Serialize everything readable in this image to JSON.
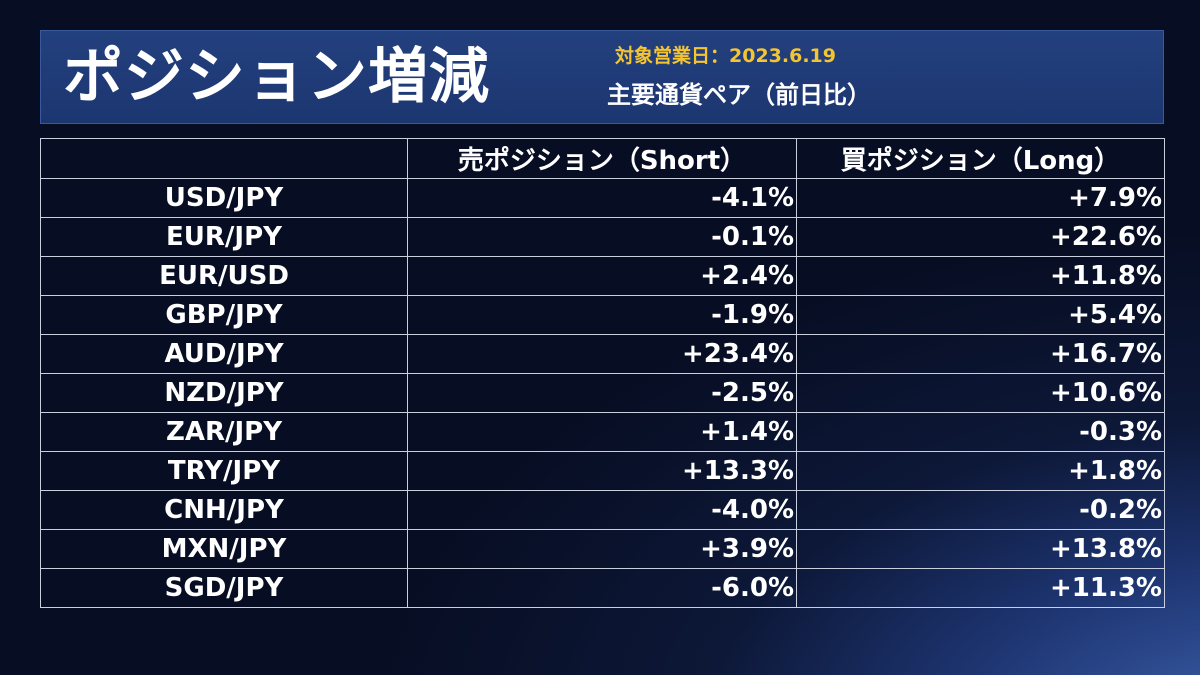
{
  "header": {
    "title": "ポジション増減",
    "date": "対象営業日：2023.6.19",
    "subtitle": "主要通貨ペア（前日比）"
  },
  "table": {
    "columns": [
      "",
      "売ポジション（Short）",
      "買ポジション（Long）"
    ],
    "rows": [
      {
        "pair": "USD/JPY",
        "short": "-4.1%",
        "long": "+7.9%"
      },
      {
        "pair": "EUR/JPY",
        "short": "-0.1%",
        "long": "+22.6%"
      },
      {
        "pair": "EUR/USD",
        "short": "+2.4%",
        "long": "+11.8%"
      },
      {
        "pair": "GBP/JPY",
        "short": "-1.9%",
        "long": "+5.4%"
      },
      {
        "pair": "AUD/JPY",
        "short": "+23.4%",
        "long": "+16.7%"
      },
      {
        "pair": "NZD/JPY",
        "short": "-2.5%",
        "long": "+10.6%"
      },
      {
        "pair": "ZAR/JPY",
        "short": "+1.4%",
        "long": "-0.3%"
      },
      {
        "pair": "TRY/JPY",
        "short": "+13.3%",
        "long": "+1.8%"
      },
      {
        "pair": "CNH/JPY",
        "short": "-4.0%",
        "long": "-0.2%"
      },
      {
        "pair": "MXN/JPY",
        "short": "+3.9%",
        "long": "+13.8%"
      },
      {
        "pair": "SGD/JPY",
        "short": "-6.0%",
        "long": "+11.3%"
      }
    ]
  },
  "colors": {
    "background": "#0d1838",
    "header_panel": "#1f3a76",
    "date_text": "#f5c531",
    "text": "#ffffff",
    "grid": "#c9cfdc"
  }
}
